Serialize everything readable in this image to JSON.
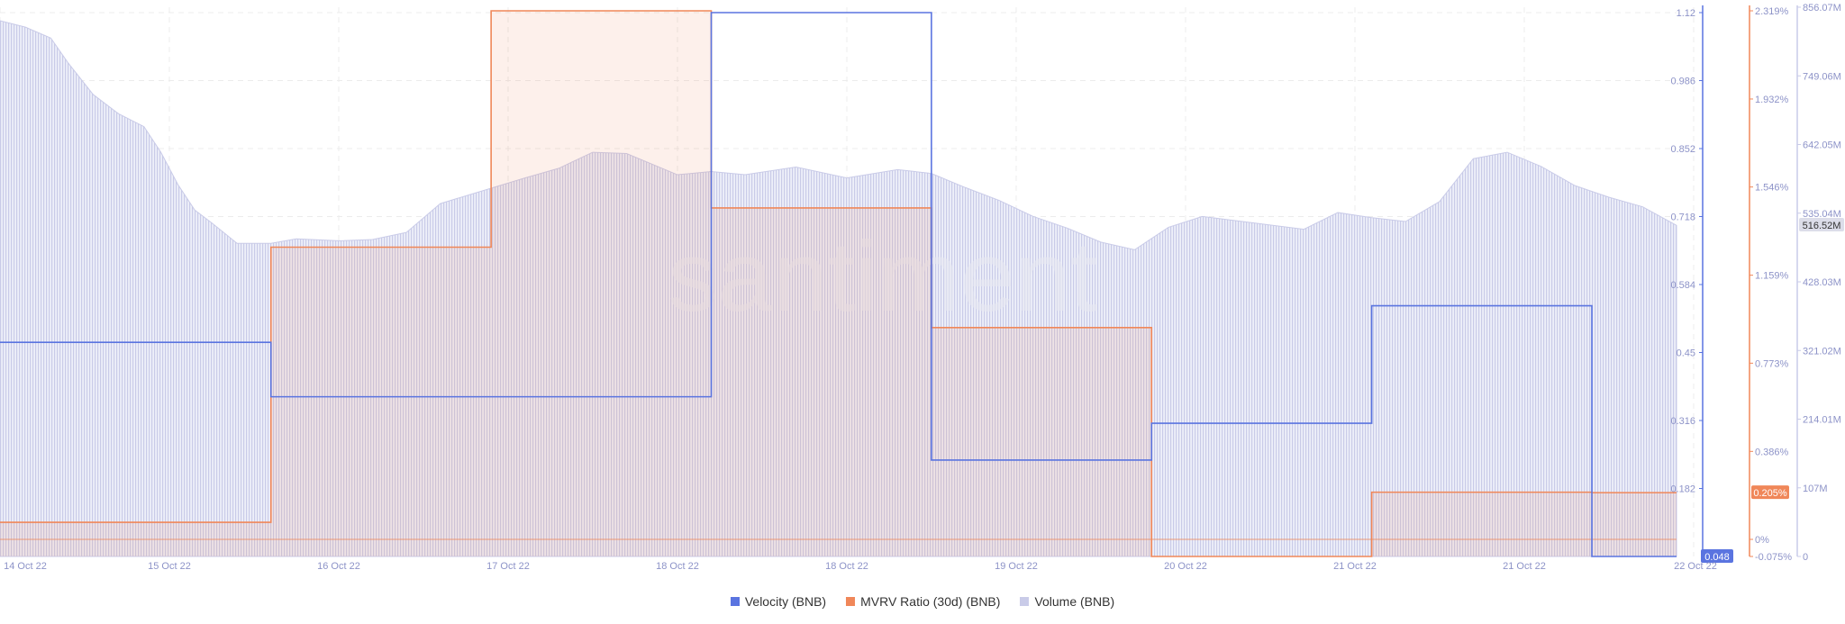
{
  "watermark": "santiment",
  "colors": {
    "velocity": "#5a74e0",
    "mvrv": "#f08759",
    "volume": "#c9cbe8",
    "grid": "#ececec",
    "text": "#8d93c8"
  },
  "chart_data": {
    "type": "line",
    "x_labels": [
      "14 Oct 22",
      "15 Oct 22",
      "16 Oct 22",
      "17 Oct 22",
      "18 Oct 22",
      "18 Oct 22",
      "19 Oct 22",
      "20 Oct 22",
      "21 Oct 22",
      "21 Oct 22",
      "22 Oct 22"
    ],
    "axes": {
      "velocity": {
        "ticks": [
          "1.12",
          "0.986",
          "0.852",
          "0.718",
          "0.584",
          "0.45",
          "0.316",
          "0.182",
          "0.048"
        ],
        "range": [
          0.048,
          1.12
        ]
      },
      "mvrv": {
        "ticks": [
          "2.319%",
          "1.932%",
          "1.546%",
          "1.159%",
          "0.773%",
          "0.386%",
          "0%",
          "-0.075%"
        ],
        "range": [
          -0.075,
          2.319
        ]
      },
      "volume": {
        "ticks": [
          "856.07M",
          "749.06M",
          "642.05M",
          "535.04M",
          "428.03M",
          "321.02M",
          "214.01M",
          "107M",
          "0"
        ],
        "range": [
          0,
          856.07
        ]
      }
    },
    "current": {
      "velocity": "0.048",
      "mvrv": "0.205%",
      "volume": "516.52M"
    },
    "series": [
      {
        "name": "Velocity (BNB)",
        "type": "step",
        "points": [
          [
            0,
            0.47
          ],
          [
            1.6,
            0.47
          ],
          [
            1.6,
            0.3628
          ],
          [
            4.2,
            0.3628
          ],
          [
            4.2,
            1.12
          ],
          [
            5.5,
            1.12
          ],
          [
            5.5,
            0.238
          ],
          [
            6.8,
            0.238
          ],
          [
            6.8,
            0.3105
          ],
          [
            8.1,
            0.3105
          ],
          [
            8.1,
            0.5422
          ],
          [
            9.4,
            0.5422
          ],
          [
            9.4,
            0.048
          ],
          [
            9.9,
            0.048
          ]
        ]
      },
      {
        "name": "MVRV Ratio (30d) (BNB)",
        "type": "step-area",
        "points": [
          [
            0,
            0.075
          ],
          [
            1.6,
            0.075
          ],
          [
            1.6,
            1.282
          ],
          [
            2.9,
            1.282
          ],
          [
            2.9,
            2.319
          ],
          [
            4.2,
            2.319
          ],
          [
            4.2,
            1.454
          ],
          [
            5.5,
            1.454
          ],
          [
            5.5,
            0.929
          ],
          [
            6.8,
            0.929
          ],
          [
            6.8,
            -0.075
          ],
          [
            8.1,
            -0.075
          ],
          [
            8.1,
            0.207
          ],
          [
            9.4,
            0.207
          ],
          [
            9.4,
            0.205
          ],
          [
            9.9,
            0.205
          ]
        ]
      },
      {
        "name": "Volume (BNB)",
        "type": "bar-area",
        "points": [
          [
            0,
            835
          ],
          [
            0.15,
            825
          ],
          [
            0.3,
            808
          ],
          [
            0.4,
            770
          ],
          [
            0.55,
            720
          ],
          [
            0.7,
            690
          ],
          [
            0.85,
            670
          ],
          [
            0.95,
            630
          ],
          [
            1.05,
            580
          ],
          [
            1.15,
            540
          ],
          [
            1.25,
            520
          ],
          [
            1.4,
            488
          ],
          [
            1.6,
            488
          ],
          [
            1.75,
            495
          ],
          [
            2.0,
            492
          ],
          [
            2.2,
            494
          ],
          [
            2.4,
            505
          ],
          [
            2.6,
            550
          ],
          [
            2.85,
            570
          ],
          [
            3.1,
            590
          ],
          [
            3.3,
            605
          ],
          [
            3.5,
            630
          ],
          [
            3.7,
            628
          ],
          [
            4.0,
            595
          ],
          [
            4.2,
            600
          ],
          [
            4.4,
            595
          ],
          [
            4.7,
            607
          ],
          [
            5.0,
            590
          ],
          [
            5.3,
            603
          ],
          [
            5.5,
            597
          ],
          [
            5.7,
            575
          ],
          [
            5.9,
            555
          ],
          [
            6.1,
            530
          ],
          [
            6.3,
            512
          ],
          [
            6.5,
            490
          ],
          [
            6.7,
            478
          ],
          [
            6.9,
            513
          ],
          [
            7.1,
            530
          ],
          [
            7.4,
            520
          ],
          [
            7.7,
            510
          ],
          [
            7.9,
            536
          ],
          [
            8.1,
            528
          ],
          [
            8.3,
            522
          ],
          [
            8.5,
            553
          ],
          [
            8.7,
            620
          ],
          [
            8.9,
            630
          ],
          [
            9.1,
            608
          ],
          [
            9.3,
            578
          ],
          [
            9.5,
            560
          ],
          [
            9.7,
            545
          ],
          [
            9.9,
            516
          ]
        ]
      }
    ],
    "grid": true,
    "legend": "bottom-center"
  },
  "legend": [
    {
      "label": "Velocity (BNB)",
      "color": "#5a74e0"
    },
    {
      "label": "MVRV Ratio (30d) (BNB)",
      "color": "#f08759"
    },
    {
      "label": "Volume (BNB)",
      "color": "#c9cbe8"
    }
  ]
}
